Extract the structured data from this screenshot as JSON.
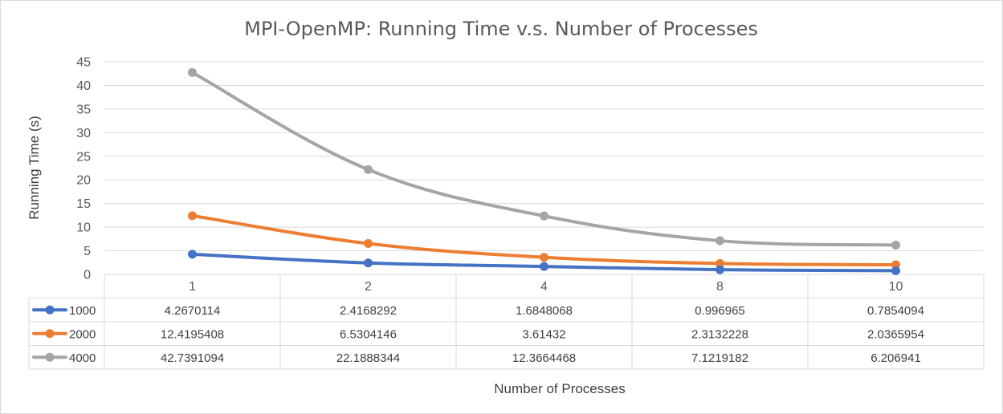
{
  "chart_data": {
    "type": "line",
    "title": "MPI-OpenMP: Running Time v.s. Number of Processes",
    "xlabel": "Number of Processes",
    "ylabel": "Running Time (s)",
    "categories": [
      "1",
      "2",
      "4",
      "8",
      "10"
    ],
    "ylim": [
      0,
      45
    ],
    "yticks": [
      0,
      5,
      10,
      15,
      20,
      25,
      30,
      35,
      40,
      45
    ],
    "grid": true,
    "legend": "data-table",
    "series": [
      {
        "name": "1000",
        "color": "#4472c4",
        "values": [
          4.2670114,
          2.4168292,
          1.6848068,
          0.996965,
          0.7854094
        ],
        "labels": [
          "4.2670114",
          "2.4168292",
          "1.6848068",
          "0.996965",
          "0.7854094"
        ]
      },
      {
        "name": "2000",
        "color": "#ed7d31",
        "values": [
          12.4195408,
          6.5304146,
          3.61432,
          2.3132228,
          2.0365954
        ],
        "labels": [
          "12.4195408",
          "6.5304146",
          "3.61432",
          "2.3132228",
          "2.0365954"
        ]
      },
      {
        "name": "4000",
        "color": "#a5a5a5",
        "values": [
          42.7391094,
          22.1888344,
          12.3664468,
          7.1219182,
          6.206941
        ],
        "labels": [
          "42.7391094",
          "22.1888344",
          "12.3664468",
          "7.1219182",
          "6.206941"
        ]
      }
    ]
  }
}
